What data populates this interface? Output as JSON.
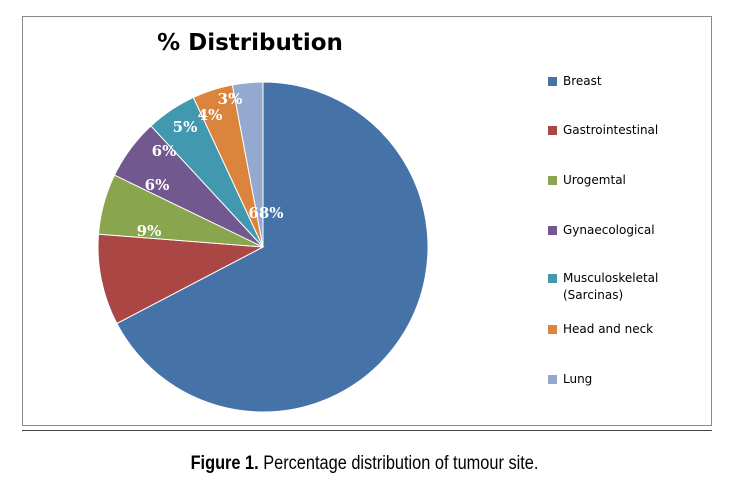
{
  "chart_data": {
    "type": "pie",
    "title": "% Distribution",
    "categories": [
      "Breast",
      "Gastrointestinal",
      "Urogemtal",
      "Gynaecological",
      "Musculoskeletal (Sarcinas)",
      "Head and neck",
      "Lung"
    ],
    "values": [
      68,
      9,
      6,
      6,
      5,
      4,
      3
    ],
    "data_labels": [
      "68%",
      "9%",
      "6%",
      "6%",
      "5%",
      "4%",
      "3%"
    ],
    "colors": [
      "#4572a7",
      "#aa4643",
      "#89a54e",
      "#71588f",
      "#4198af",
      "#db843d",
      "#93a9cf"
    ],
    "legend_position": "right"
  },
  "caption": {
    "label": "Figure 1.",
    "text": "Percentage distribution of tumour site."
  }
}
